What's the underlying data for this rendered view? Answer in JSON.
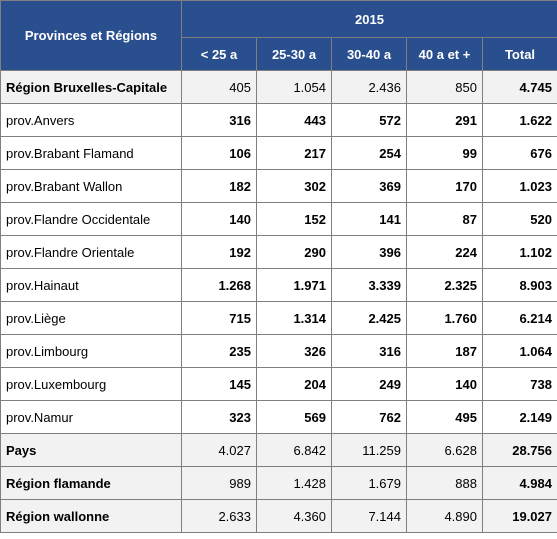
{
  "table": {
    "corner_label": "Provinces et Régions",
    "year": "2015",
    "columns": [
      "< 25 a",
      "25-30 a",
      "30-40 a",
      "40 a et +",
      "Total"
    ],
    "rows": [
      {
        "label": "Région Bruxelles-Capitale",
        "values": [
          "405",
          "1.054",
          "2.436",
          "850",
          "4.745"
        ],
        "summary": true
      },
      {
        "label": "prov.Anvers",
        "values": [
          "316",
          "443",
          "572",
          "291",
          "1.622"
        ],
        "summary": false
      },
      {
        "label": "prov.Brabant Flamand",
        "values": [
          "106",
          "217",
          "254",
          "99",
          "676"
        ],
        "summary": false
      },
      {
        "label": "prov.Brabant Wallon",
        "values": [
          "182",
          "302",
          "369",
          "170",
          "1.023"
        ],
        "summary": false
      },
      {
        "label": "prov.Flandre Occidentale",
        "values": [
          "140",
          "152",
          "141",
          "87",
          "520"
        ],
        "summary": false
      },
      {
        "label": "prov.Flandre Orientale",
        "values": [
          "192",
          "290",
          "396",
          "224",
          "1.102"
        ],
        "summary": false
      },
      {
        "label": "prov.Hainaut",
        "values": [
          "1.268",
          "1.971",
          "3.339",
          "2.325",
          "8.903"
        ],
        "summary": false
      },
      {
        "label": "prov.Liège",
        "values": [
          "715",
          "1.314",
          "2.425",
          "1.760",
          "6.214"
        ],
        "summary": false
      },
      {
        "label": "prov.Limbourg",
        "values": [
          "235",
          "326",
          "316",
          "187",
          "1.064"
        ],
        "summary": false
      },
      {
        "label": "prov.Luxembourg",
        "values": [
          "145",
          "204",
          "249",
          "140",
          "738"
        ],
        "summary": false
      },
      {
        "label": "prov.Namur",
        "values": [
          "323",
          "569",
          "762",
          "495",
          "2.149"
        ],
        "summary": false
      },
      {
        "label": "Pays",
        "values": [
          "4.027",
          "6.842",
          "11.259",
          "6.628",
          "28.756"
        ],
        "summary": true
      },
      {
        "label": "Région flamande",
        "values": [
          "989",
          "1.428",
          "1.679",
          "888",
          "4.984"
        ],
        "summary": true
      },
      {
        "label": "Région wallonne",
        "values": [
          "2.633",
          "4.360",
          "7.144",
          "4.890",
          "19.027"
        ],
        "summary": true
      }
    ]
  },
  "colors": {
    "header_bg": "#2a4f8e",
    "summary_bg": "#f2f2f2",
    "border": "#7f7f7f"
  }
}
